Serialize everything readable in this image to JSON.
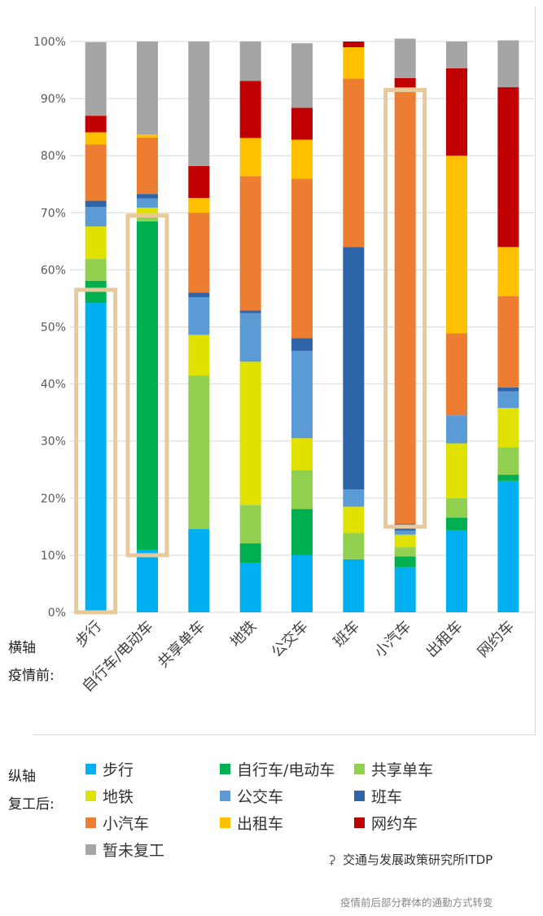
{
  "chart_data": {
    "type": "bar",
    "stacked": true,
    "categories": [
      "步行",
      "自行车/电动车",
      "共享单车",
      "地铁",
      "公交车",
      "班车",
      "小汽车",
      "出租车",
      "网约车"
    ],
    "yticks": [
      "0%",
      "10%",
      "20%",
      "30%",
      "40%",
      "50%",
      "60%",
      "70%",
      "80%",
      "90%",
      "100%"
    ],
    "ylim": [
      0,
      100
    ],
    "grid": true,
    "series": [
      {
        "name": "步行",
        "color": "#00b0f0",
        "values": [
          54.2,
          10.9,
          14.6,
          8.6,
          10.0,
          9.3,
          7.9,
          14.3,
          23.0
        ]
      },
      {
        "name": "自行车/电动车",
        "color": "#00b050",
        "values": [
          3.9,
          57.6,
          0.0,
          3.5,
          8.1,
          0.0,
          1.9,
          2.3,
          1.1
        ]
      },
      {
        "name": "共享单车",
        "color": "#92d050",
        "values": [
          3.8,
          0.9,
          26.9,
          6.7,
          6.8,
          4.6,
          1.6,
          3.4,
          4.8
        ]
      },
      {
        "name": "地铁",
        "color": "#e1e100",
        "values": [
          5.7,
          1.5,
          7.1,
          25.1,
          5.6,
          4.6,
          2.2,
          9.6,
          6.9
        ]
      },
      {
        "name": "公交车",
        "color": "#5b9bd5",
        "values": [
          3.4,
          1.6,
          6.6,
          8.5,
          15.3,
          3.0,
          0.7,
          4.9,
          2.9
        ]
      },
      {
        "name": "班车",
        "color": "#2e64a8",
        "values": [
          1.1,
          0.8,
          0.8,
          0.5,
          2.2,
          42.5,
          1.2,
          0.0,
          0.7
        ]
      },
      {
        "name": "小汽车",
        "color": "#ed7d31",
        "values": [
          9.9,
          9.9,
          14.0,
          23.5,
          28.0,
          29.5,
          76.5,
          14.4,
          16.0
        ]
      },
      {
        "name": "出租车",
        "color": "#ffc000",
        "values": [
          2.1,
          0.5,
          2.6,
          6.7,
          6.8,
          5.5,
          0.0,
          31.1,
          8.6
        ]
      },
      {
        "name": "网约车",
        "color": "#c00000",
        "values": [
          2.9,
          0.0,
          5.6,
          10.0,
          5.6,
          1.0,
          1.6,
          15.3,
          28.0
        ]
      },
      {
        "name": "暂未复工",
        "color": "#a5a5a5",
        "values": [
          12.9,
          16.3,
          21.8,
          6.9,
          11.3,
          0.0,
          6.9,
          4.7,
          8.2
        ]
      }
    ],
    "highlights": [
      {
        "category": "步行",
        "from": 0,
        "to": 56.5
      },
      {
        "category": "自行车/电动车",
        "from": 10,
        "to": 69.5
      },
      {
        "category": "小汽车",
        "from": 15,
        "to": 91.5
      }
    ],
    "highlight_color": "#e8c99a"
  },
  "side_labels": {
    "x_axis_1": "横轴",
    "x_axis_2": "疫情前:",
    "y_axis_1": "纵轴",
    "y_axis_2": "复工后:"
  },
  "watermark": "交通与发展政策研究所ITDP",
  "caption": "疫情前后部分群体的通勤方式转变"
}
